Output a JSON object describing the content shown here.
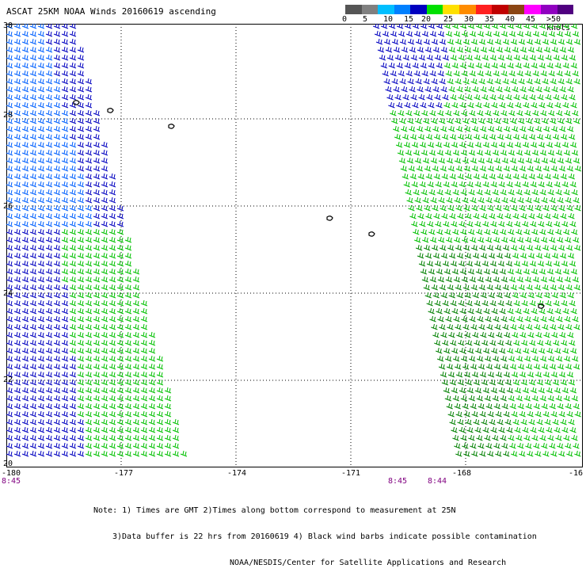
{
  "title": "ASCAT 25KM NOAA Winds 20160619 ascending",
  "legend": {
    "unit": "knots",
    "colors": [
      "#555555",
      "#808080",
      "#00bfff",
      "#0080ff",
      "#0000c0",
      "#00e000",
      "#ffe000",
      "#ff8c00",
      "#ff2020",
      "#c00000",
      "#8b4513",
      "#ff00ff",
      "#9000c0",
      "#500080"
    ],
    "labels": [
      "0",
      "5",
      "10",
      "15",
      "20",
      "25",
      "30",
      "35",
      "40",
      "45",
      ">50 knots"
    ]
  },
  "axes": {
    "lon_labels": [
      "-180",
      "-177",
      "-174",
      "-171",
      "-168",
      "-16"
    ],
    "lat_labels": [
      "30",
      "28",
      "26",
      "24",
      "22",
      "20"
    ]
  },
  "pass_times": [
    "8:45",
    "8:45",
    "8:44"
  ],
  "notes": [
    "Note: 1) Times are GMT 2)Times along bottom correspond to measurement at 25N",
    "3)Data buffer is 22 hrs from 20160619 4) Black wind barbs indicate possible contamination",
    "NOAA/NESDIS/Center for Satellite Applications and Research"
  ],
  "swaths": [
    {
      "name": "west",
      "colors": [
        "#0000c0",
        "#0060ff",
        "#00c000"
      ]
    },
    {
      "name": "east",
      "colors": [
        "#00c000",
        "#008000",
        "#0000c0"
      ]
    }
  ]
}
